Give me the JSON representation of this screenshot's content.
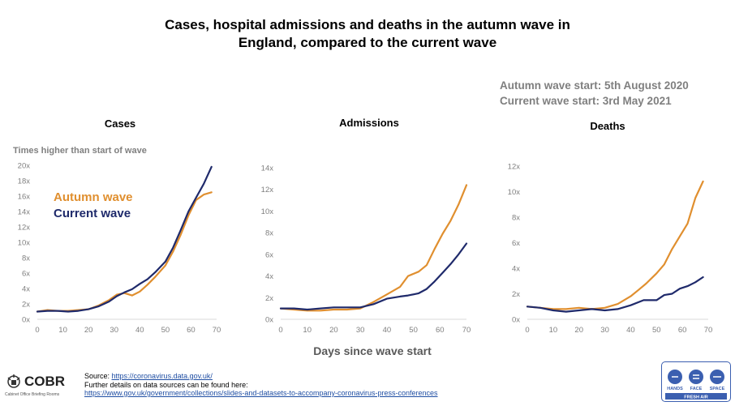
{
  "header": {
    "title_line1": "Cases, hospital admissions and deaths in the autumn wave in",
    "title_line2": "England, compared to the current wave",
    "autumn_wave_start": "Autumn wave start: 5th August 2020",
    "current_wave_start": "Current wave start: 3rd May 2021"
  },
  "legend": {
    "autumn": "Autumn wave",
    "current": "Current wave"
  },
  "colors": {
    "autumn": "#e08f2f",
    "current": "#1f2a6b",
    "axis_text": "#7f7f7f",
    "grid": "#d9d9d9"
  },
  "shared_xlabel": "Days since wave start",
  "chart_data": [
    {
      "type": "line",
      "title": "Cases",
      "ylabel": "Times higher than start of wave",
      "xlim": [
        0,
        70
      ],
      "ylim": [
        0,
        20
      ],
      "xticks": [
        0,
        10,
        20,
        30,
        40,
        50,
        60,
        70
      ],
      "yticks": [
        0,
        2,
        4,
        6,
        8,
        10,
        12,
        14,
        16,
        18,
        20
      ],
      "ytick_labels": [
        "0x",
        "2x",
        "4x",
        "6x",
        "8x",
        "10x",
        "12x",
        "14x",
        "16x",
        "18x",
        "20x"
      ],
      "grid": false,
      "legend_position": "inside-top-left",
      "series": [
        {
          "name": "Autumn wave",
          "x": [
            0,
            4,
            8,
            12,
            16,
            20,
            24,
            28,
            31,
            34,
            37,
            40,
            43,
            46,
            50,
            53,
            56,
            59,
            62,
            65,
            68
          ],
          "y": [
            1.0,
            1.2,
            1.1,
            1.1,
            1.2,
            1.3,
            1.8,
            2.5,
            3.2,
            3.4,
            3.1,
            3.6,
            4.5,
            5.5,
            7.0,
            8.8,
            11.0,
            13.5,
            15.5,
            16.2,
            16.5
          ]
        },
        {
          "name": "Current wave",
          "x": [
            0,
            4,
            8,
            12,
            16,
            20,
            24,
            28,
            31,
            34,
            37,
            40,
            43,
            46,
            50,
            53,
            56,
            59,
            62,
            65,
            68
          ],
          "y": [
            1.0,
            1.1,
            1.1,
            1.0,
            1.1,
            1.3,
            1.7,
            2.3,
            3.0,
            3.5,
            3.9,
            4.6,
            5.2,
            6.1,
            7.5,
            9.3,
            11.6,
            14.0,
            15.8,
            17.6,
            19.8
          ]
        }
      ]
    },
    {
      "type": "line",
      "title": "Admissions",
      "xlim": [
        0,
        70
      ],
      "ylim": [
        0,
        14
      ],
      "xticks": [
        0,
        10,
        20,
        30,
        40,
        50,
        60,
        70
      ],
      "yticks": [
        0,
        2,
        4,
        6,
        8,
        10,
        12,
        14
      ],
      "ytick_labels": [
        "0x",
        "2x",
        "4x",
        "6x",
        "8x",
        "10x",
        "12x",
        "14x"
      ],
      "grid": false,
      "series": [
        {
          "name": "Autumn wave",
          "x": [
            0,
            5,
            10,
            15,
            20,
            25,
            30,
            35,
            40,
            45,
            48,
            52,
            55,
            58,
            61,
            64,
            67,
            70
          ],
          "y": [
            1.0,
            0.9,
            0.8,
            0.8,
            0.9,
            0.9,
            1.0,
            1.6,
            2.3,
            3.0,
            4.0,
            4.4,
            5.0,
            6.5,
            7.9,
            9.1,
            10.6,
            12.4
          ]
        },
        {
          "name": "Current wave",
          "x": [
            0,
            5,
            10,
            15,
            20,
            25,
            30,
            35,
            40,
            45,
            48,
            52,
            55,
            58,
            61,
            64,
            67,
            70
          ],
          "y": [
            1.0,
            1.0,
            0.9,
            1.0,
            1.1,
            1.1,
            1.1,
            1.4,
            1.9,
            2.1,
            2.2,
            2.4,
            2.8,
            3.5,
            4.3,
            5.1,
            6.0,
            7.0
          ]
        }
      ]
    },
    {
      "type": "line",
      "title": "Deaths",
      "xlim": [
        0,
        70
      ],
      "ylim": [
        0,
        12
      ],
      "xticks": [
        0,
        10,
        20,
        30,
        40,
        50,
        60,
        70
      ],
      "yticks": [
        0,
        2,
        4,
        6,
        8,
        10,
        12
      ],
      "ytick_labels": [
        "0x",
        "2x",
        "4x",
        "6x",
        "8x",
        "10x",
        "12x"
      ],
      "grid": false,
      "series": [
        {
          "name": "Autumn wave",
          "x": [
            0,
            5,
            10,
            15,
            20,
            25,
            30,
            35,
            40,
            43,
            46,
            50,
            53,
            56,
            59,
            62,
            65,
            68
          ],
          "y": [
            1.0,
            0.9,
            0.8,
            0.8,
            0.9,
            0.8,
            0.9,
            1.2,
            1.8,
            2.3,
            2.8,
            3.6,
            4.3,
            5.5,
            6.5,
            7.5,
            9.5,
            10.8
          ]
        },
        {
          "name": "Current wave",
          "x": [
            0,
            5,
            10,
            15,
            20,
            25,
            30,
            35,
            40,
            45,
            50,
            53,
            56,
            59,
            62,
            65,
            68
          ],
          "y": [
            1.0,
            0.9,
            0.7,
            0.6,
            0.7,
            0.8,
            0.7,
            0.8,
            1.1,
            1.5,
            1.5,
            1.9,
            2.0,
            2.4,
            2.6,
            2.9,
            3.3
          ]
        }
      ]
    }
  ],
  "footer": {
    "source_prefix": "Source: ",
    "source_link": "https://coronavirus.data.gov.uk/",
    "further_details": "Further details on data sources can be found here:",
    "further_link": "https://www.gov.uk/government/collections/slides-and-datasets-to-accompany-coronavirus-press-conferences",
    "cobr_title": "COBR",
    "cobr_subtitle": "Cabinet Office Briefing Rooms",
    "hfs_labels": [
      "HANDS",
      "FACE",
      "SPACE"
    ],
    "hfs_fresh_air": "FRESH AIR"
  }
}
